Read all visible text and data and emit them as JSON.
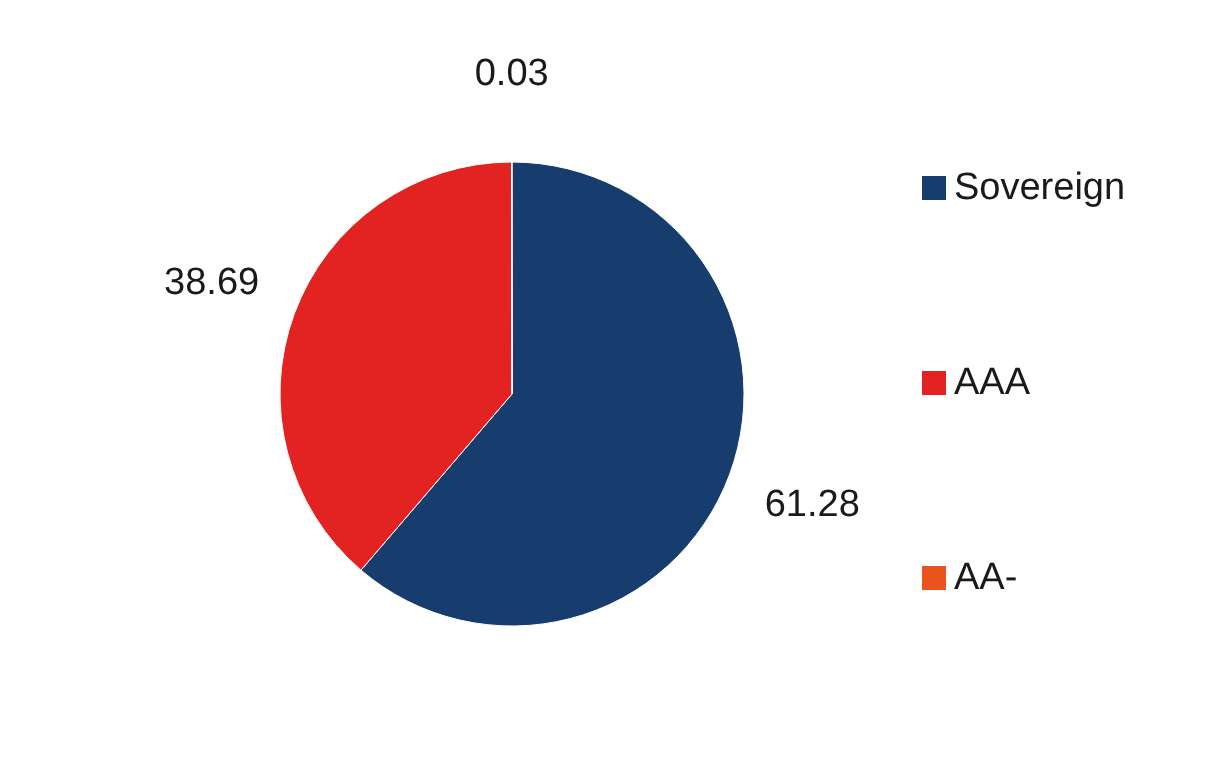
{
  "chart_data": {
    "type": "pie",
    "categories": [
      "Sovereign",
      "AAA",
      "AA-"
    ],
    "values": [
      61.28,
      38.69,
      0.03
    ],
    "colors": [
      "#173c6e",
      "#e32322",
      "#e8531e"
    ],
    "data_labels": true,
    "legend": "right"
  }
}
